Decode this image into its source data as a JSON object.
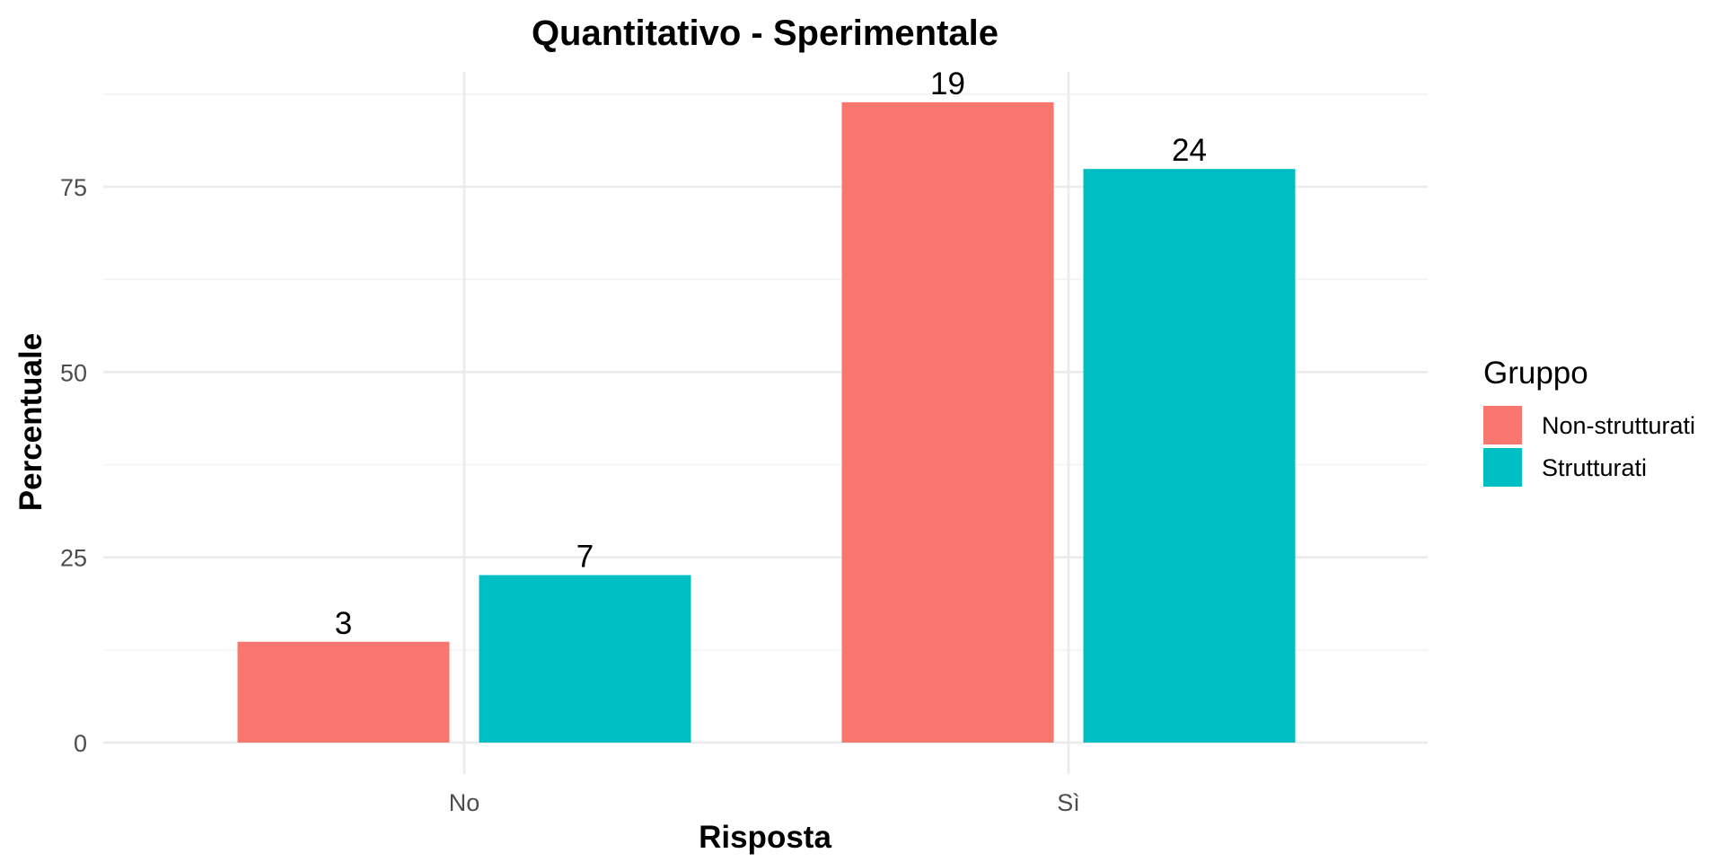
{
  "chart_data": {
    "type": "bar",
    "title": "Quantitativo - Sperimentale",
    "xlabel": "Risposta",
    "ylabel": "Percentuale",
    "categories": [
      "No",
      "Sì"
    ],
    "series": [
      {
        "name": "Non-strutturati",
        "color": "#F8766D",
        "values": [
          13.6,
          86.4
        ],
        "labels": [
          "3",
          "19"
        ]
      },
      {
        "name": "Strutturati",
        "color": "#00BFC4",
        "values": [
          22.6,
          77.4
        ],
        "labels": [
          "7",
          "24"
        ]
      }
    ],
    "ylim": [
      0,
      90
    ],
    "yticks": [
      0,
      25,
      50,
      75
    ],
    "grid": true,
    "legend": {
      "title": "Gruppo",
      "position": "right"
    }
  }
}
